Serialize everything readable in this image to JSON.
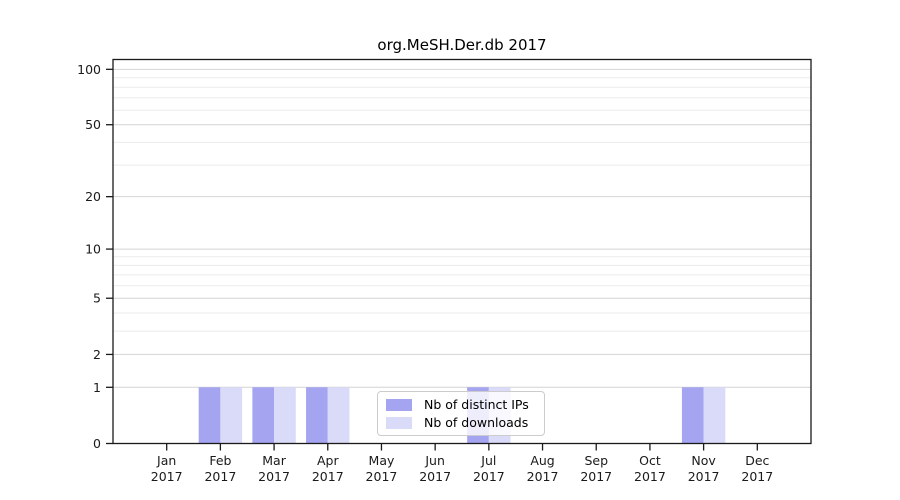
{
  "figure": {
    "title": "org.MeSH.Der.db 2017"
  },
  "chart_data": {
    "type": "bar",
    "title": "org.MeSH.Der.db 2017",
    "year_label": "2017",
    "categories": [
      "Jan",
      "Feb",
      "Mar",
      "Apr",
      "May",
      "Jun",
      "Jul",
      "Aug",
      "Sep",
      "Oct",
      "Nov",
      "Dec"
    ],
    "series": [
      {
        "name": "Nb of distinct IPs",
        "color": "#a4a4f1",
        "values": [
          0,
          1,
          1,
          1,
          0,
          0,
          1,
          0,
          0,
          0,
          1,
          0
        ]
      },
      {
        "name": "Nb of downloads",
        "color": "#dadaf9",
        "values": [
          0,
          1,
          1,
          1,
          0,
          0,
          1,
          0,
          0,
          0,
          1,
          0
        ]
      }
    ],
    "xlabel": "",
    "ylabel": "",
    "yscale": "log1p",
    "ylim": [
      0,
      113
    ],
    "y_ticks": [
      0,
      1,
      2,
      5,
      10,
      20,
      50,
      100
    ],
    "gridline_values": [
      1,
      2,
      3,
      4,
      5,
      6,
      7,
      8,
      9,
      10,
      20,
      30,
      40,
      50,
      60,
      70,
      80,
      90,
      100
    ],
    "grid": true,
    "legend_position": "inside-bottom-center"
  },
  "legend": {
    "entries": [
      {
        "label": "Nb of distinct IPs"
      },
      {
        "label": "Nb of downloads"
      }
    ]
  },
  "colors": {
    "axis": "#1a1a1a",
    "grid_major": "#d4d4d4",
    "grid_minor": "#ebebeb",
    "tick_text": "#1a1a1a",
    "background": "#ffffff",
    "legend_border": "#cccccc"
  }
}
